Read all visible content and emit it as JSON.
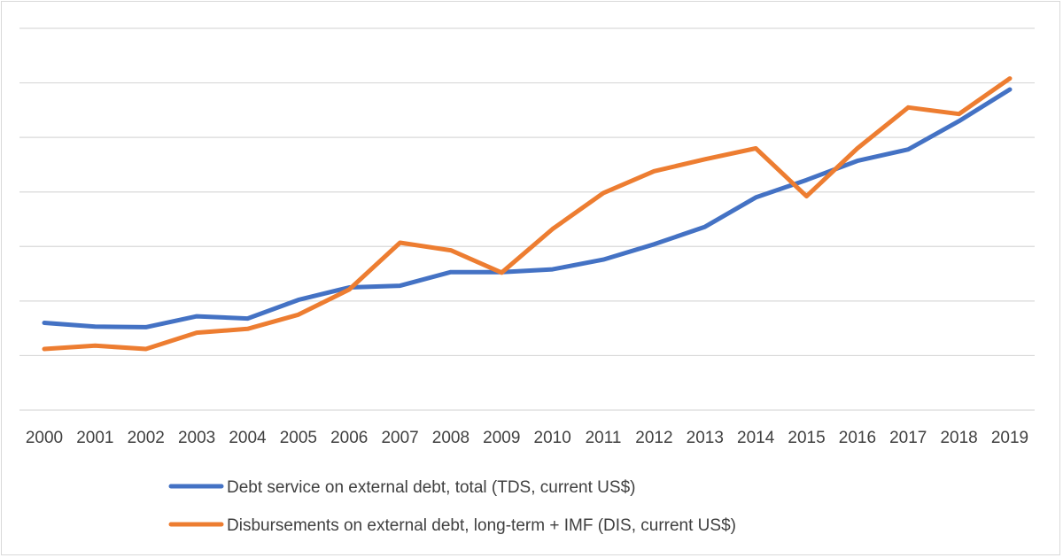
{
  "chart_data": {
    "type": "line",
    "title": "",
    "xlabel": "",
    "ylabel": "",
    "x": [
      "2000",
      "2001",
      "2002",
      "2003",
      "2004",
      "2005",
      "2006",
      "2007",
      "2008",
      "2009",
      "2010",
      "2011",
      "2012",
      "2013",
      "2014",
      "2015",
      "2016",
      "2017",
      "2018",
      "2019"
    ],
    "ylim": [
      0,
      7
    ],
    "y_tick_labels_visible": false,
    "grid": "horizontal",
    "gridline_count": 8,
    "legend": "bottom",
    "series": [
      {
        "name": "Debt service on external debt, total (TDS, current US$)",
        "color": "#4472C4",
        "values": [
          1.6,
          1.53,
          1.52,
          1.72,
          1.68,
          2.02,
          2.25,
          2.28,
          2.53,
          2.53,
          2.58,
          2.76,
          3.04,
          3.36,
          3.9,
          4.22,
          4.57,
          4.78,
          5.3,
          5.88
        ]
      },
      {
        "name": "Disbursements on external debt, long-term + IMF (DIS, current US$)",
        "color": "#ED7D31",
        "values": [
          1.12,
          1.18,
          1.12,
          1.42,
          1.49,
          1.75,
          2.21,
          3.07,
          2.93,
          2.52,
          3.32,
          3.98,
          4.38,
          4.6,
          4.8,
          3.92,
          4.8,
          5.55,
          5.43,
          6.08
        ]
      }
    ]
  }
}
